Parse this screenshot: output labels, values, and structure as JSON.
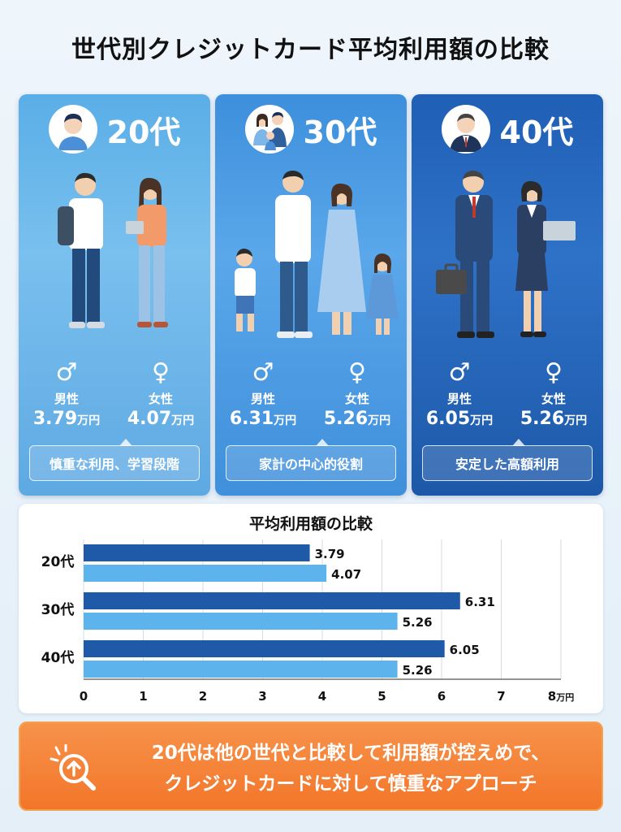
{
  "title": "世代別クレジットカード平均利用額の比較",
  "colors": {
    "male_bar": "#1e5aa8",
    "female_bar": "#5db3eb",
    "panel_20": "#5aaee7",
    "panel_30": "#3d8fdc",
    "panel_40": "#1f5fb5",
    "banner": "#f2762a"
  },
  "panels": [
    {
      "age": "20代",
      "male_symbol": "♂",
      "female_symbol": "♀",
      "male_label": "男性",
      "female_label": "女性",
      "male_value": "3.79",
      "female_value": "4.07",
      "unit": "万円",
      "tag": "慎重な利用、学習段階"
    },
    {
      "age": "30代",
      "male_symbol": "♂",
      "female_symbol": "♀",
      "male_label": "男性",
      "female_label": "女性",
      "male_value": "6.31",
      "female_value": "5.26",
      "unit": "万円",
      "tag": "家計の中心的役割"
    },
    {
      "age": "40代",
      "male_symbol": "♂",
      "female_symbol": "♀",
      "male_label": "男性",
      "female_label": "女性",
      "male_value": "6.05",
      "female_value": "5.26",
      "unit": "万円",
      "tag": "安定した高額利用"
    }
  ],
  "chart_data": {
    "type": "bar",
    "orientation": "horizontal",
    "title": "平均利用額の比較",
    "categories": [
      "20代",
      "30代",
      "40代"
    ],
    "series": [
      {
        "values": [
          3.79,
          6.31,
          6.05
        ],
        "color": "#1e5aa8"
      },
      {
        "values": [
          4.07,
          5.26,
          5.26
        ],
        "color": "#5db3eb"
      }
    ],
    "data_labels": [
      [
        "3.79",
        "6.31",
        "6.05"
      ],
      [
        "4.07",
        "5.26",
        "5.26"
      ]
    ],
    "xlim": [
      0,
      8
    ],
    "xticks": [
      "0",
      "1",
      "2",
      "3",
      "4",
      "5",
      "6",
      "7",
      "8"
    ],
    "x_unit": "万円",
    "grid": "vertical",
    "legend": "none"
  },
  "banner": {
    "line1": "20代は他の世代と比較して利用額が控えめで、",
    "line2": "クレジットカードに対して慎重なアプローチ",
    "icon": "magnifier-arrow-up-icon"
  }
}
